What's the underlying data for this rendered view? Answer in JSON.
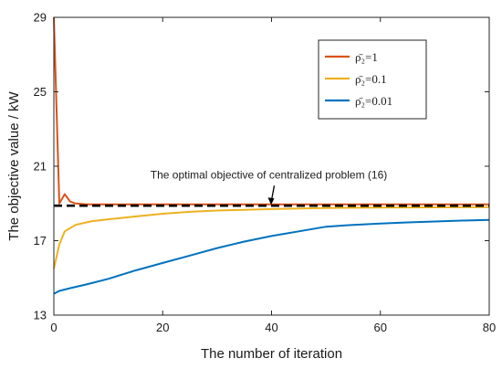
{
  "chart_data": {
    "type": "line",
    "xlabel": "The number of iteration",
    "ylabel": "The objective value / kW",
    "xlim": [
      0,
      80
    ],
    "ylim": [
      13,
      29
    ],
    "xticks": [
      "0",
      "20",
      "40",
      "60",
      "80"
    ],
    "yticks": [
      "13",
      "17",
      "21",
      "25",
      "29"
    ],
    "grid": false,
    "legend_position": "top-right",
    "series": [
      {
        "name": "ρ̄₂=1",
        "color": "#d95319",
        "x": [
          0,
          1,
          2,
          3,
          4,
          6,
          10,
          20,
          40,
          60,
          80
        ],
        "y": [
          29,
          19,
          19.5,
          19.1,
          19.0,
          18.95,
          18.95,
          18.95,
          18.95,
          18.95,
          18.95
        ]
      },
      {
        "name": "ρ̄₂=0.1",
        "color": "#edb120",
        "x": [
          0,
          1,
          2,
          4,
          7,
          10,
          15,
          20,
          25,
          30,
          40,
          50,
          60,
          80
        ],
        "y": [
          15.5,
          16.8,
          17.5,
          17.85,
          18.05,
          18.15,
          18.3,
          18.45,
          18.55,
          18.62,
          18.7,
          18.75,
          18.78,
          18.8
        ]
      },
      {
        "name": "ρ̄₂=0.01",
        "color": "#0072bd",
        "x": [
          0,
          1,
          3,
          6,
          10,
          15,
          20,
          25,
          30,
          35,
          40,
          45,
          50,
          55,
          60,
          65,
          70,
          75,
          80
        ],
        "y": [
          14.15,
          14.3,
          14.45,
          14.65,
          14.95,
          15.4,
          15.8,
          16.2,
          16.6,
          16.95,
          17.25,
          17.5,
          17.75,
          17.85,
          17.92,
          17.98,
          18.03,
          18.08,
          18.12
        ]
      }
    ],
    "optimal_line": {
      "y": 18.88,
      "color": "#000000"
    },
    "annotation": {
      "text": "The optimal objective of centralized problem (16)",
      "target_x": 40,
      "target_y": 18.88,
      "text_x": 39.5,
      "text_y": 20.3
    }
  }
}
